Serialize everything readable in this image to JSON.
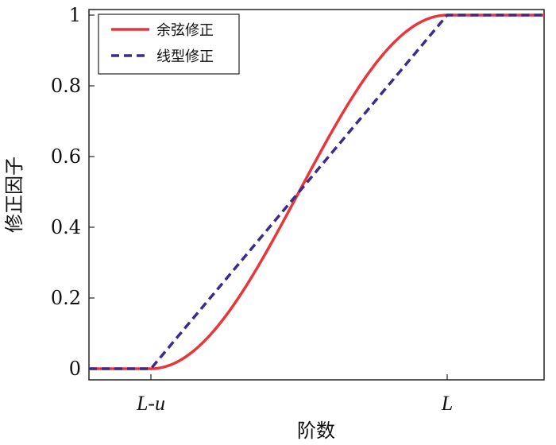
{
  "chart_data": {
    "type": "line",
    "xlabel": "阶数",
    "ylabel": "修正因子",
    "x_ticks": [
      "L-u",
      "L"
    ],
    "y_ticks": [
      "0",
      "0.2",
      "0.4",
      "0.6",
      "0.8",
      "1"
    ],
    "ylim": [
      0,
      1
    ],
    "grid": false,
    "legend_position": "top-left",
    "x": [
      "left-edge",
      "L-u",
      "L",
      "right-edge"
    ],
    "series": [
      {
        "name": "余弦修正",
        "color": "#e8363a",
        "style": "solid",
        "shape": "raised-cosine",
        "values": [
          0,
          0,
          1,
          1
        ]
      },
      {
        "name": "线型修正",
        "color": "#3a2c8c",
        "style": "dashed",
        "shape": "linear",
        "values": [
          0,
          0,
          1,
          1
        ]
      }
    ]
  }
}
